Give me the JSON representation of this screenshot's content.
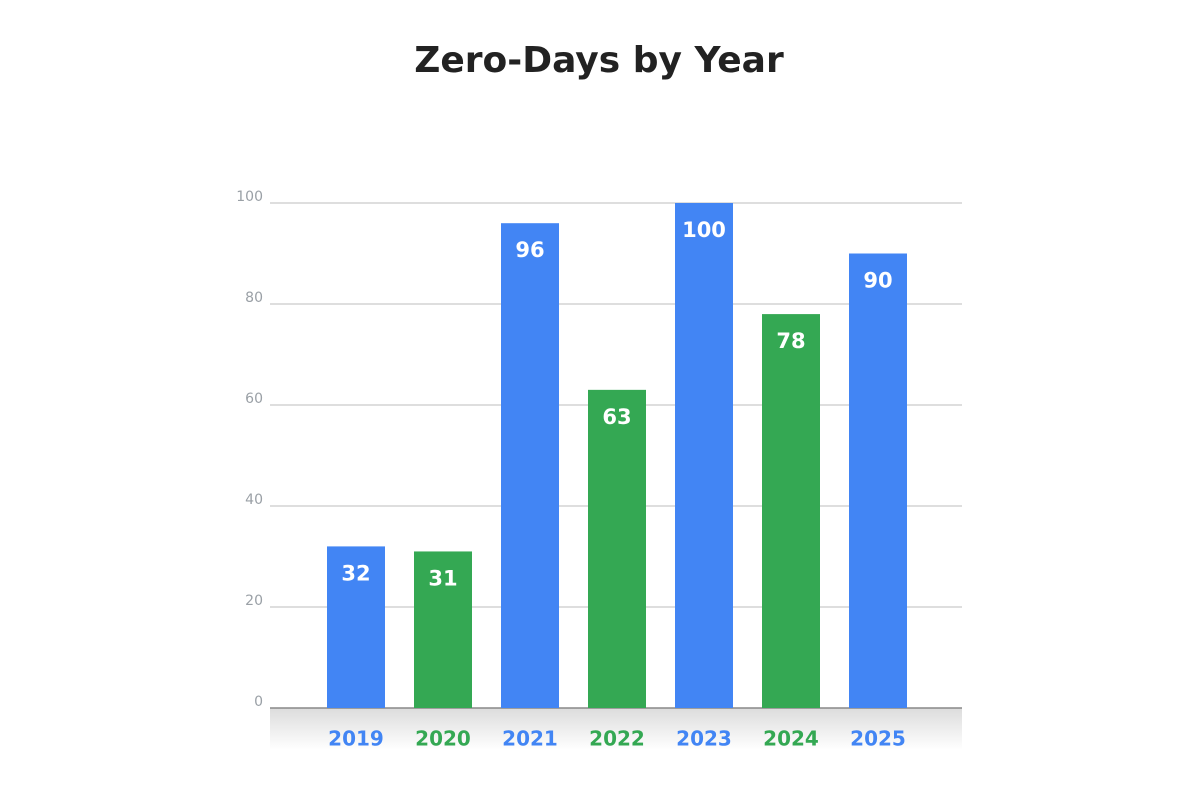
{
  "chart_data": {
    "type": "bar",
    "title": "Zero-Days by Year",
    "categories": [
      "2019",
      "2020",
      "2021",
      "2022",
      "2023",
      "2024",
      "2025"
    ],
    "values": [
      32,
      31,
      96,
      63,
      100,
      78,
      90
    ],
    "colors": [
      "#4285f4",
      "#34a853",
      "#4285f4",
      "#34a853",
      "#4285f4",
      "#34a853",
      "#4285f4"
    ],
    "ylim": [
      0,
      100
    ],
    "yticks": [
      0,
      20,
      40,
      60,
      80,
      100
    ],
    "grid": true
  }
}
